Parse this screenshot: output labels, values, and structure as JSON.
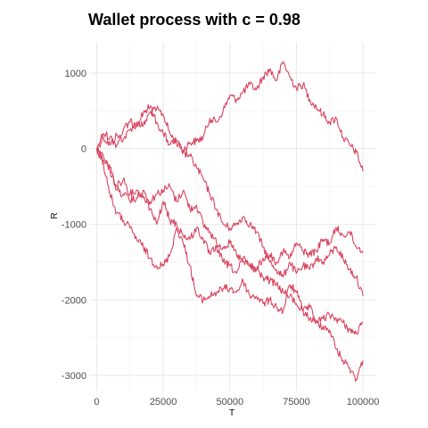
{
  "chart_data": {
    "type": "line",
    "title": "Wallet process with c =  0.98",
    "xlabel": "T",
    "ylabel": "R",
    "xlim": [
      -2500,
      105000
    ],
    "ylim": [
      -3200,
      1400
    ],
    "x_ticks": [
      0,
      25000,
      50000,
      75000,
      100000
    ],
    "x_tick_labels": [
      "0",
      "25000",
      "50000",
      "75000",
      "100000"
    ],
    "y_ticks": [
      1000,
      0,
      -1000,
      -2000,
      -3000
    ],
    "y_tick_labels": [
      "1000",
      "0",
      "-1000",
      "-2000",
      "-3000"
    ],
    "grid": true,
    "legend": "none",
    "line_color": "#D9435E",
    "series": [
      {
        "x": [
          0,
          2500,
          5000,
          7500,
          10000,
          12500,
          15000,
          17500,
          20000,
          22500,
          25000,
          27500,
          30000,
          32500,
          35000,
          37500,
          40000,
          42500,
          45000,
          47500,
          50000,
          52500,
          55000,
          57500,
          60000,
          62500,
          65000,
          67500,
          70000,
          72500,
          75000,
          77500,
          80000,
          82500,
          85000,
          87500,
          90000,
          92500,
          95000,
          97500,
          100000
        ],
        "y": [
          0,
          150,
          50,
          180,
          120,
          250,
          350,
          300,
          480,
          520,
          450,
          200,
          80,
          -20,
          80,
          100,
          150,
          400,
          350,
          500,
          700,
          650,
          750,
          850,
          780,
          950,
          1050,
          900,
          1150,
          950,
          800,
          850,
          650,
          550,
          450,
          350,
          400,
          150,
          50,
          -50,
          -300
        ]
      },
      {
        "x": [
          0,
          2500,
          5000,
          7500,
          10000,
          12500,
          15000,
          17500,
          20000,
          22500,
          25000,
          27500,
          30000,
          32500,
          35000,
          37500,
          40000,
          42500,
          45000,
          47500,
          50000,
          52500,
          55000,
          57500,
          60000,
          62500,
          65000,
          67500,
          70000,
          72500,
          75000,
          77500,
          80000,
          82500,
          85000,
          87500,
          90000,
          92500,
          95000,
          97500,
          100000
        ],
        "y": [
          0,
          200,
          150,
          50,
          250,
          350,
          300,
          480,
          550,
          350,
          200,
          50,
          100,
          -50,
          -100,
          -250,
          -400,
          -600,
          -800,
          -1000,
          -1050,
          -1000,
          -900,
          -1000,
          -1100,
          -1300,
          -1500,
          -1600,
          -1700,
          -1500,
          -1650,
          -1550,
          -1600,
          -1450,
          -1500,
          -1400,
          -1300,
          -1450,
          -1600,
          -1700,
          -1950
        ]
      },
      {
        "x": [
          0,
          2500,
          5000,
          7500,
          10000,
          12500,
          15000,
          17500,
          20000,
          22500,
          25000,
          27500,
          30000,
          32500,
          35000,
          37500,
          40000,
          42500,
          45000,
          47500,
          50000,
          52500,
          55000,
          57500,
          60000,
          62500,
          65000,
          67500,
          70000,
          72500,
          75000,
          77500,
          80000,
          82500,
          85000,
          87500,
          90000,
          92500,
          95000,
          97500,
          100000
        ],
        "y": [
          0,
          -100,
          -300,
          -500,
          -400,
          -600,
          -550,
          -650,
          -700,
          -600,
          -550,
          -500,
          -700,
          -550,
          -800,
          -750,
          -1000,
          -1100,
          -1250,
          -1300,
          -1250,
          -1400,
          -1500,
          -1550,
          -1600,
          -1700,
          -1750,
          -1800,
          -1900,
          -1950,
          -2050,
          -2150,
          -2100,
          -2300,
          -2250,
          -2200,
          -2250,
          -2300,
          -2400,
          -2450,
          -2300
        ]
      },
      {
        "x": [
          0,
          2500,
          5000,
          7500,
          10000,
          12500,
          15000,
          17500,
          20000,
          22500,
          25000,
          27500,
          30000,
          32500,
          35000,
          37500,
          40000,
          42500,
          45000,
          47500,
          50000,
          52500,
          55000,
          57500,
          60000,
          62500,
          65000,
          67500,
          70000,
          72500,
          75000,
          77500,
          80000,
          82500,
          85000,
          87500,
          90000,
          92500,
          95000,
          97500,
          100000
        ],
        "y": [
          0,
          -200,
          -600,
          -850,
          -950,
          -1050,
          -1200,
          -1300,
          -1450,
          -1550,
          -1550,
          -1400,
          -1050,
          -1250,
          -1550,
          -1950,
          -2000,
          -1950,
          -1900,
          -1850,
          -1850,
          -1900,
          -1750,
          -1950,
          -1950,
          -2050,
          -2000,
          -2100,
          -2150,
          -1800,
          -1900,
          -2150,
          -2250,
          -2300,
          -2350,
          -2400,
          -2650,
          -2800,
          -2900,
          -3050,
          -2800
        ]
      },
      {
        "x": [
          0,
          2500,
          5000,
          7500,
          10000,
          12500,
          15000,
          17500,
          20000,
          22500,
          25000,
          27500,
          30000,
          32500,
          35000,
          37500,
          40000,
          42500,
          45000,
          47500,
          50000,
          52500,
          55000,
          57500,
          60000,
          62500,
          65000,
          67500,
          70000,
          72500,
          75000,
          77500,
          80000,
          82500,
          85000,
          87500,
          90000,
          92500,
          95000,
          97500,
          100000
        ],
        "y": [
          0,
          -150,
          -250,
          -550,
          -600,
          -700,
          -650,
          -550,
          -800,
          -1000,
          -700,
          -950,
          -1000,
          -1150,
          -1200,
          -1050,
          -1200,
          -1400,
          -1300,
          -1500,
          -1550,
          -1650,
          -1450,
          -1550,
          -1600,
          -1450,
          -1400,
          -1500,
          -1350,
          -1450,
          -1250,
          -1350,
          -1400,
          -1350,
          -1200,
          -1250,
          -1050,
          -1150,
          -1100,
          -1300,
          -1350
        ]
      }
    ]
  }
}
